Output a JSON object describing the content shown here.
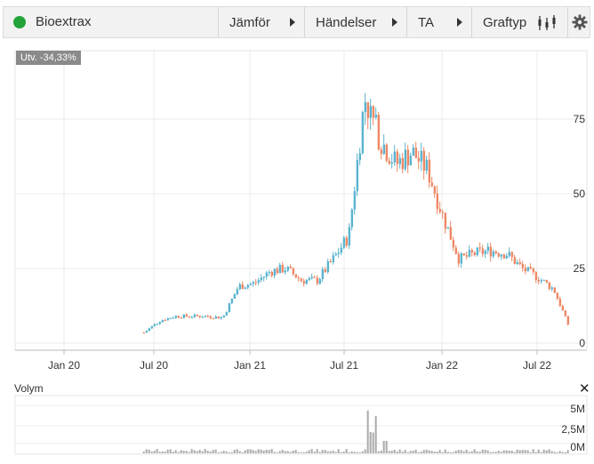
{
  "toolbar": {
    "title": "Bioextrax",
    "compare_label": "Jämför",
    "events_label": "Händelser",
    "ta_label": "TA",
    "graph_type_label": "Graftyp",
    "graph_type_icon": "candlestick-icon",
    "settings_icon": "gear-icon"
  },
  "badge": {
    "text": "Utv. -34,33%"
  },
  "volume": {
    "label": "Volym",
    "close_icon": "close-icon",
    "y_ticks": [
      "5M",
      "2,5M",
      "0M"
    ]
  },
  "colors": {
    "up": "#5ab4cf",
    "down": "#ee8866",
    "status_dot": "#21a33a"
  },
  "chart_data": {
    "type": "candlestick",
    "x_ticks": [
      "Jan 20",
      "Jul 20",
      "Jan 21",
      "Jul 21",
      "Jan 22",
      "Jul 22"
    ],
    "y_ticks": [
      "75",
      "50",
      "25",
      "0"
    ],
    "ylim": [
      0,
      95
    ],
    "series": [
      {
        "values": [
          [
            "2020-06",
            3.5
          ],
          [
            "2020-07",
            7.5
          ],
          [
            "2020-08",
            9
          ],
          [
            "2020-09",
            9
          ],
          [
            "2020-10",
            9
          ],
          [
            "2020-11",
            8.5
          ],
          [
            "2020-12",
            19
          ],
          [
            "2021-01",
            20
          ],
          [
            "2021-02",
            24
          ],
          [
            "2021-03",
            25
          ],
          [
            "2021-04",
            21
          ],
          [
            "2021-05",
            21
          ],
          [
            "2021-06",
            28
          ],
          [
            "2021-07",
            36
          ],
          [
            "2021-08",
            82
          ],
          [
            "2021-09",
            68
          ],
          [
            "2021-10",
            60
          ],
          [
            "2021-11",
            64
          ],
          [
            "2021-12",
            58
          ],
          [
            "2022-01",
            42
          ],
          [
            "2022-02",
            28
          ],
          [
            "2022-03",
            30
          ],
          [
            "2022-04",
            31
          ],
          [
            "2022-05",
            30
          ],
          [
            "2022-06",
            25
          ],
          [
            "2022-07",
            22
          ],
          [
            "2022-08",
            18
          ],
          [
            "2022-09",
            5
          ]
        ]
      }
    ]
  }
}
